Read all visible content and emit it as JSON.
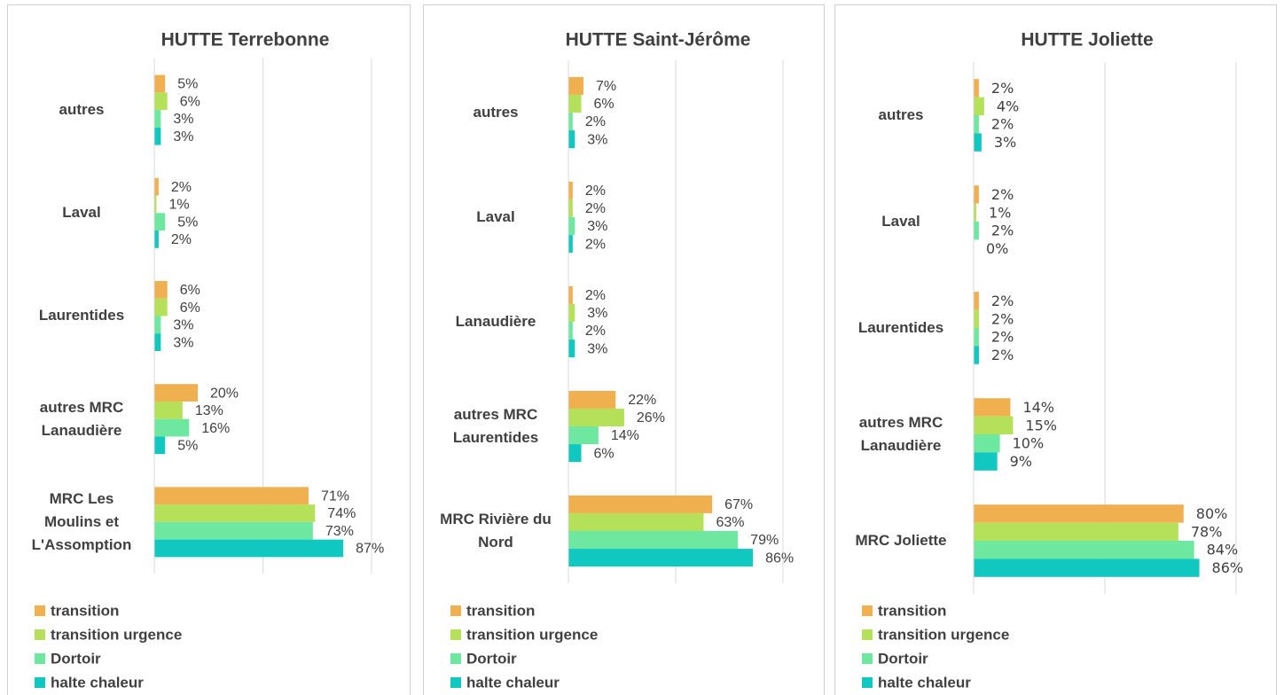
{
  "chart_data": [
    {
      "type": "bar",
      "title": "HUTTE Terrebonne",
      "categories": [
        "autres",
        "Laval",
        "Laurentides",
        "autres MRC Lanaudière",
        "MRC Les Moulins et L'Assomption"
      ],
      "xlim": [
        0,
        100
      ],
      "xticks": [
        0,
        50,
        100
      ],
      "grid": true,
      "series": [
        {
          "name": "transition",
          "color": "#f0b050",
          "values": [
            5,
            2,
            6,
            20,
            71
          ],
          "value_labels": [
            "5%",
            "2%",
            "6%",
            "20%",
            "71%"
          ]
        },
        {
          "name": "transition urgence",
          "color": "#b5e05a",
          "values": [
            6,
            1,
            6,
            13,
            74
          ],
          "value_labels": [
            "6%",
            "1%",
            "6%",
            "13%",
            "74%"
          ]
        },
        {
          "name": "Dortoir",
          "color": "#6ee8a0",
          "values": [
            3,
            5,
            3,
            16,
            73
          ],
          "value_labels": [
            "3%",
            "5%",
            "3%",
            "16%",
            "73%"
          ]
        },
        {
          "name": "halte chaleur",
          "color": "#10c8c0",
          "values": [
            3,
            2,
            3,
            5,
            87
          ],
          "value_labels": [
            "3%",
            "2%",
            "3%",
            "5%",
            "87%"
          ]
        }
      ]
    },
    {
      "type": "bar",
      "title": "HUTTE Saint-Jérôme",
      "categories": [
        "autres",
        "Laval",
        "Lanaudière",
        "autres MRC Laurentides",
        "MRC Rivière du Nord"
      ],
      "xlim": [
        0,
        100
      ],
      "xticks": [
        0,
        50,
        100
      ],
      "grid": true,
      "series": [
        {
          "name": "transition",
          "color": "#f0b050",
          "values": [
            7,
            2,
            2,
            22,
            67
          ],
          "value_labels": [
            "7%",
            "2%",
            "2%",
            "22%",
            "67%"
          ]
        },
        {
          "name": "transition urgence",
          "color": "#b5e05a",
          "values": [
            6,
            2,
            3,
            26,
            63
          ],
          "value_labels": [
            "6%",
            "2%",
            "3%",
            "26%",
            "63%"
          ]
        },
        {
          "name": "Dortoir",
          "color": "#6ee8a0",
          "values": [
            2,
            3,
            2,
            14,
            79
          ],
          "value_labels": [
            "2%",
            "3%",
            "2%",
            "14%",
            "79%"
          ]
        },
        {
          "name": "halte chaleur",
          "color": "#10c8c0",
          "values": [
            3,
            2,
            3,
            6,
            86
          ],
          "value_labels": [
            "3%",
            "2%",
            "3%",
            "6%",
            "86%"
          ]
        }
      ]
    },
    {
      "type": "bar",
      "title": "HUTTE Joliette",
      "categories": [
        "autres",
        "Laval",
        "Laurentides",
        "autres MRC Lanaudière",
        "MRC Joliette"
      ],
      "xlim": [
        0,
        100
      ],
      "xticks": [
        0,
        50,
        100
      ],
      "grid": true,
      "series": [
        {
          "name": "transition",
          "color": "#f0b050",
          "values": [
            2,
            2,
            2,
            14,
            80
          ],
          "value_labels": [
            "2%",
            "2%",
            "2%",
            "14%",
            "80%"
          ]
        },
        {
          "name": "transition urgence",
          "color": "#b5e05a",
          "values": [
            4,
            1,
            2,
            15,
            78
          ],
          "value_labels": [
            "4%",
            "1%",
            "2%",
            "15%",
            "78%"
          ]
        },
        {
          "name": "Dortoir",
          "color": "#6ee8a0",
          "values": [
            2,
            2,
            2,
            10,
            84
          ],
          "value_labels": [
            "2%",
            "2%",
            "2%",
            "10%",
            "84%"
          ]
        },
        {
          "name": "halte chaleur",
          "color": "#10c8c0",
          "values": [
            3,
            0,
            2,
            9,
            86
          ],
          "value_labels": [
            "3%",
            "0%",
            "2%",
            "9%",
            "86%"
          ]
        }
      ]
    }
  ]
}
